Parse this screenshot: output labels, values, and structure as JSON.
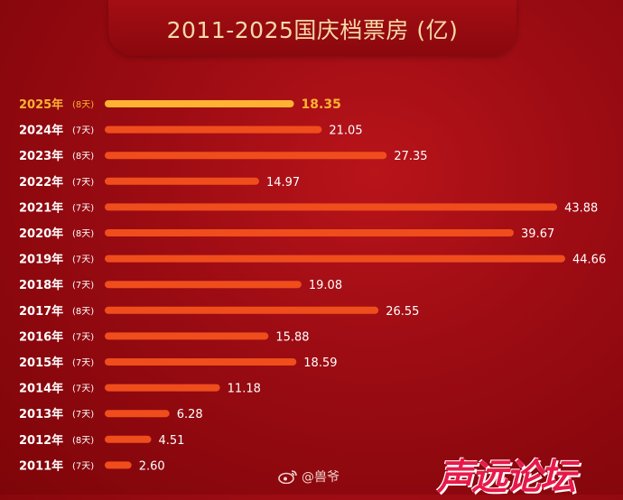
{
  "title": "2011-2025国庆档票房 (亿)",
  "colors": {
    "bar": "#f04d1d",
    "highlight": "#fdb233",
    "label": "#ffffff"
  },
  "watermark": "@兽爷",
  "logo": "声远论坛",
  "chart_data": {
    "type": "bar",
    "orientation": "horizontal",
    "title": "2011-2025国庆档票房 (亿)",
    "unit": "亿",
    "xlim": [
      0,
      44.66
    ],
    "categories": [
      "2025年",
      "2024年",
      "2023年",
      "2022年",
      "2021年",
      "2020年",
      "2019年",
      "2018年",
      "2017年",
      "2016年",
      "2015年",
      "2014年",
      "2013年",
      "2012年",
      "2011年"
    ],
    "days": [
      "(8天)",
      "(7天)",
      "(8天)",
      "(7天)",
      "(7天)",
      "(8天)",
      "(7天)",
      "(7天)",
      "(8天)",
      "(7天)",
      "(7天)",
      "(7天)",
      "(7天)",
      "(8天)",
      "(7天)"
    ],
    "values": [
      18.35,
      21.05,
      27.35,
      14.97,
      43.88,
      39.67,
      44.66,
      19.08,
      26.55,
      15.88,
      18.59,
      11.18,
      6.28,
      4.51,
      2.6
    ],
    "value_labels": [
      "18.35",
      "21.05",
      "27.35",
      "14.97",
      "43.88",
      "39.67",
      "44.66",
      "19.08",
      "26.55",
      "15.88",
      "18.59",
      "11.18",
      "6.28",
      "4.51",
      "2.60"
    ],
    "highlight_index": 0
  }
}
